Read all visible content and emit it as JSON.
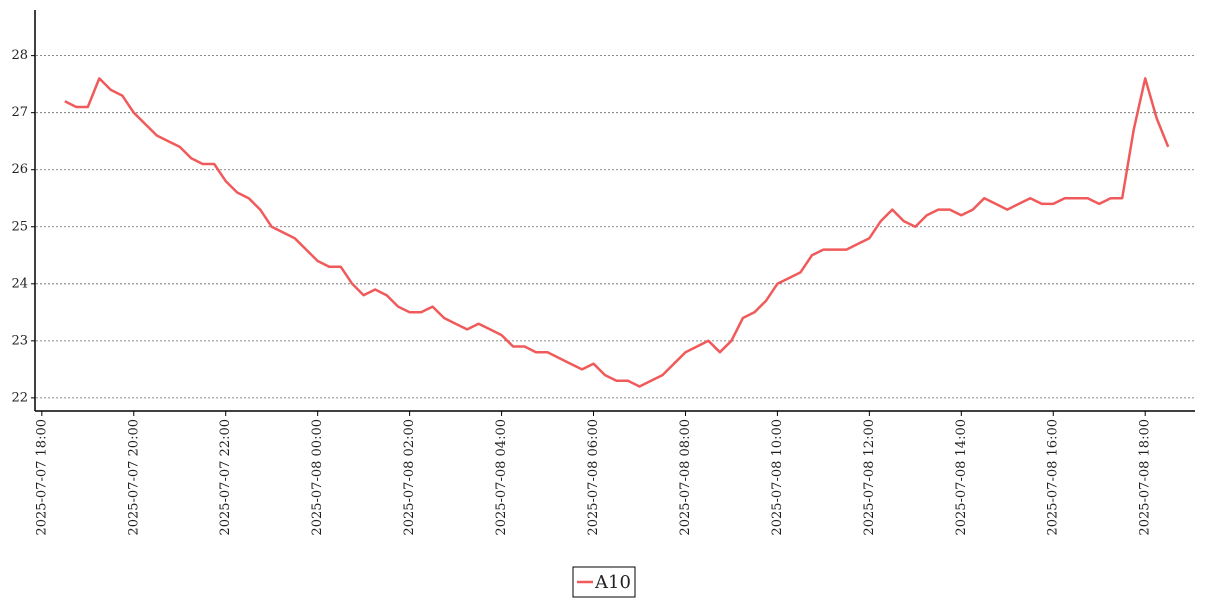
{
  "chart_data": {
    "type": "line",
    "x": [
      "2025-07-07 18:30",
      "2025-07-07 18:45",
      "2025-07-07 19:00",
      "2025-07-07 19:15",
      "2025-07-07 19:30",
      "2025-07-07 19:45",
      "2025-07-07 20:00",
      "2025-07-07 20:15",
      "2025-07-07 20:30",
      "2025-07-07 20:45",
      "2025-07-07 21:00",
      "2025-07-07 21:15",
      "2025-07-07 21:30",
      "2025-07-07 21:45",
      "2025-07-07 22:00",
      "2025-07-07 22:15",
      "2025-07-07 22:30",
      "2025-07-07 22:45",
      "2025-07-07 23:00",
      "2025-07-07 23:15",
      "2025-07-07 23:30",
      "2025-07-07 23:45",
      "2025-07-08 00:00",
      "2025-07-08 00:15",
      "2025-07-08 00:30",
      "2025-07-08 00:45",
      "2025-07-08 01:00",
      "2025-07-08 01:15",
      "2025-07-08 01:30",
      "2025-07-08 01:45",
      "2025-07-08 02:00",
      "2025-07-08 02:15",
      "2025-07-08 02:30",
      "2025-07-08 02:45",
      "2025-07-08 03:00",
      "2025-07-08 03:15",
      "2025-07-08 03:30",
      "2025-07-08 03:45",
      "2025-07-08 04:00",
      "2025-07-08 04:15",
      "2025-07-08 04:30",
      "2025-07-08 04:45",
      "2025-07-08 05:00",
      "2025-07-08 05:15",
      "2025-07-08 05:30",
      "2025-07-08 05:45",
      "2025-07-08 06:00",
      "2025-07-08 06:15",
      "2025-07-08 06:30",
      "2025-07-08 06:45",
      "2025-07-08 07:00",
      "2025-07-08 07:15",
      "2025-07-08 07:30",
      "2025-07-08 07:45",
      "2025-07-08 08:00",
      "2025-07-08 08:15",
      "2025-07-08 08:30",
      "2025-07-08 08:45",
      "2025-07-08 09:00",
      "2025-07-08 09:15",
      "2025-07-08 09:30",
      "2025-07-08 09:45",
      "2025-07-08 10:00",
      "2025-07-08 10:15",
      "2025-07-08 10:30",
      "2025-07-08 10:45",
      "2025-07-08 11:00",
      "2025-07-08 11:15",
      "2025-07-08 11:30",
      "2025-07-08 11:45",
      "2025-07-08 12:00",
      "2025-07-08 12:15",
      "2025-07-08 12:30",
      "2025-07-08 12:45",
      "2025-07-08 13:00",
      "2025-07-08 13:15",
      "2025-07-08 13:30",
      "2025-07-08 13:45",
      "2025-07-08 14:00",
      "2025-07-08 14:15",
      "2025-07-08 14:30",
      "2025-07-08 14:45",
      "2025-07-08 15:00",
      "2025-07-08 15:15",
      "2025-07-08 15:30",
      "2025-07-08 15:45",
      "2025-07-08 16:00",
      "2025-07-08 16:15",
      "2025-07-08 16:30",
      "2025-07-08 16:45",
      "2025-07-08 17:00",
      "2025-07-08 17:15",
      "2025-07-08 17:30",
      "2025-07-08 17:45",
      "2025-07-08 18:00",
      "2025-07-08 18:15",
      "2025-07-08 18:30"
    ],
    "series": [
      {
        "name": "A10",
        "color": "#f05a5a",
        "values": [
          27.2,
          27.1,
          27.1,
          27.6,
          27.4,
          27.3,
          27.0,
          26.8,
          26.6,
          26.5,
          26.4,
          26.2,
          26.1,
          26.1,
          25.8,
          25.6,
          25.5,
          25.3,
          25.0,
          24.9,
          24.8,
          24.6,
          24.4,
          24.3,
          24.3,
          24.0,
          23.8,
          23.9,
          23.8,
          23.6,
          23.5,
          23.5,
          23.6,
          23.4,
          23.3,
          23.2,
          23.3,
          23.2,
          23.1,
          22.9,
          22.9,
          22.8,
          22.8,
          22.7,
          22.6,
          22.5,
          22.6,
          22.4,
          22.3,
          22.3,
          22.2,
          22.3,
          22.4,
          22.6,
          22.8,
          22.9,
          23.0,
          22.8,
          23.0,
          23.4,
          23.5,
          23.7,
          24.0,
          24.1,
          24.2,
          24.5,
          24.6,
          24.6,
          24.6,
          24.7,
          24.8,
          25.1,
          25.3,
          25.1,
          25.0,
          25.2,
          25.3,
          25.3,
          25.2,
          25.3,
          25.5,
          25.4,
          25.3,
          25.4,
          25.5,
          25.4,
          25.4,
          25.5,
          25.5,
          25.5,
          25.4,
          25.5,
          25.5,
          26.7,
          27.6,
          26.9,
          26.4
        ]
      }
    ],
    "xlim": [
      "2025-07-07 17:55",
      "2025-07-08 19:05"
    ],
    "xticks": [
      "2025-07-07 18:00",
      "2025-07-07 20:00",
      "2025-07-07 22:00",
      "2025-07-08 00:00",
      "2025-07-08 02:00",
      "2025-07-08 04:00",
      "2025-07-08 06:00",
      "2025-07-08 08:00",
      "2025-07-08 10:00",
      "2025-07-08 12:00",
      "2025-07-08 14:00",
      "2025-07-08 16:00",
      "2025-07-08 18:00"
    ],
    "ylim": [
      21.77,
      28.8
    ],
    "yticks": [
      22,
      23,
      24,
      25,
      26,
      27,
      28
    ],
    "grid": true
  }
}
